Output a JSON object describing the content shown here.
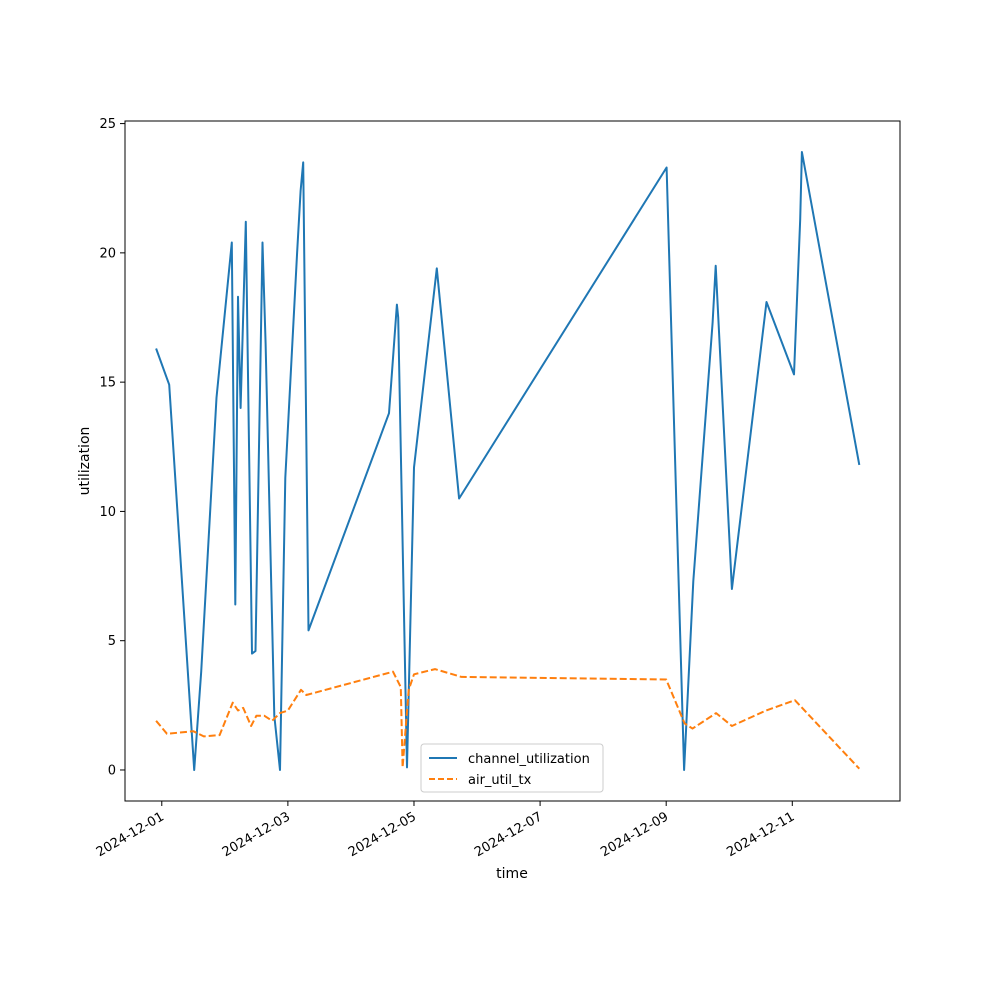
{
  "chart_data": {
    "type": "line",
    "title": "",
    "xlabel": "time",
    "ylabel": "utilization",
    "xlim": [
      "2024-11-30T10:00",
      "2024-12-12T17:00"
    ],
    "ylim": [
      -1.2,
      25.1
    ],
    "x_ticks": [
      "2024-12-01",
      "2024-12-03",
      "2024-12-05",
      "2024-12-07",
      "2024-12-09",
      "2024-12-11"
    ],
    "y_ticks": [
      0,
      5,
      10,
      15,
      20,
      25
    ],
    "grid": false,
    "legend_position": "bottom-center",
    "series": [
      {
        "name": "channel_utilization",
        "color": "#1f77b4",
        "style": "solid",
        "points": [
          [
            "2024-11-30T21:50",
            16.3
          ],
          [
            "2024-12-01T02:50",
            14.9
          ],
          [
            "2024-12-01T12:20",
            0.0
          ],
          [
            "2024-12-01T15:00",
            3.8
          ],
          [
            "2024-12-01T20:50",
            14.4
          ],
          [
            "2024-12-02T02:40",
            20.4
          ],
          [
            "2024-12-02T04:00",
            6.4
          ],
          [
            "2024-12-02T05:00",
            18.3
          ],
          [
            "2024-12-02T06:00",
            14.0
          ],
          [
            "2024-12-02T08:00",
            21.2
          ],
          [
            "2024-12-02T10:20",
            4.5
          ],
          [
            "2024-12-02T11:40",
            4.6
          ],
          [
            "2024-12-02T14:20",
            20.4
          ],
          [
            "2024-12-02T15:30",
            16.5
          ],
          [
            "2024-12-02T18:50",
            2.1
          ],
          [
            "2024-12-02T21:00",
            0.0
          ],
          [
            "2024-12-02T23:00",
            11.3
          ],
          [
            "2024-12-03T03:30",
            20.0
          ],
          [
            "2024-12-03T04:50",
            22.4
          ],
          [
            "2024-12-03T05:50",
            23.5
          ],
          [
            "2024-12-03T07:50",
            5.4
          ],
          [
            "2024-12-04T14:30",
            13.8
          ],
          [
            "2024-12-04T17:30",
            18.0
          ],
          [
            "2024-12-04T18:00",
            17.5
          ],
          [
            "2024-12-04T21:20",
            0.1
          ],
          [
            "2024-12-05T00:00",
            11.7
          ],
          [
            "2024-12-05T08:40",
            19.4
          ],
          [
            "2024-12-05T17:10",
            10.5
          ],
          [
            "2024-12-09T00:10",
            23.3
          ],
          [
            "2024-12-09T06:50",
            0.0
          ],
          [
            "2024-12-09T10:20",
            7.3
          ],
          [
            "2024-12-09T17:40",
            17.3
          ],
          [
            "2024-12-09T18:50",
            19.5
          ],
          [
            "2024-12-10T01:00",
            7.0
          ],
          [
            "2024-12-10T14:10",
            18.1
          ],
          [
            "2024-12-11T00:40",
            15.3
          ],
          [
            "2024-12-11T03:00",
            21.3
          ],
          [
            "2024-12-11T03:40",
            23.9
          ],
          [
            "2024-12-12T01:30",
            11.8
          ]
        ]
      },
      {
        "name": "air_util_tx",
        "color": "#ff7f0e",
        "style": "dashed",
        "points": [
          [
            "2024-11-30T21:50",
            1.9
          ],
          [
            "2024-12-01T02:00",
            1.4
          ],
          [
            "2024-12-01T12:00",
            1.5
          ],
          [
            "2024-12-01T16:00",
            1.3
          ],
          [
            "2024-12-01T22:00",
            1.35
          ],
          [
            "2024-12-02T03:00",
            2.6
          ],
          [
            "2024-12-02T05:00",
            2.3
          ],
          [
            "2024-12-02T07:00",
            2.4
          ],
          [
            "2024-12-02T10:00",
            1.7
          ],
          [
            "2024-12-02T12:00",
            2.1
          ],
          [
            "2024-12-02T15:00",
            2.1
          ],
          [
            "2024-12-02T18:00",
            1.9
          ],
          [
            "2024-12-02T21:00",
            2.2
          ],
          [
            "2024-12-03T00:00",
            2.3
          ],
          [
            "2024-12-03T05:00",
            3.1
          ],
          [
            "2024-12-03T07:00",
            2.9
          ],
          [
            "2024-12-04T16:00",
            3.8
          ],
          [
            "2024-12-04T19:00",
            3.2
          ],
          [
            "2024-12-04T19:40",
            0.1
          ],
          [
            "2024-12-04T22:00",
            3.1
          ],
          [
            "2024-12-05T00:00",
            3.7
          ],
          [
            "2024-12-05T08:00",
            3.9
          ],
          [
            "2024-12-05T18:00",
            3.6
          ],
          [
            "2024-12-09T00:00",
            3.5
          ],
          [
            "2024-12-09T07:00",
            1.8
          ],
          [
            "2024-12-09T10:00",
            1.6
          ],
          [
            "2024-12-09T19:00",
            2.2
          ],
          [
            "2024-12-10T01:00",
            1.7
          ],
          [
            "2024-12-10T14:00",
            2.3
          ],
          [
            "2024-12-11T01:00",
            2.7
          ],
          [
            "2024-12-12T01:30",
            0.05
          ]
        ]
      }
    ]
  }
}
